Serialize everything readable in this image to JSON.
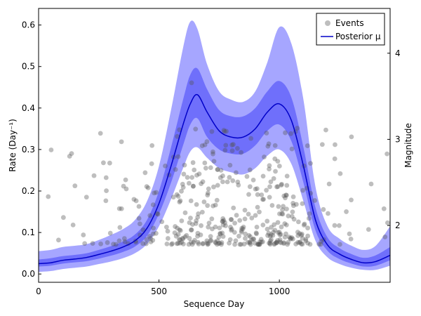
{
  "chart_data": {
    "type": "line",
    "xlabel": "Sequence Day",
    "ylabel": "Rate (Day⁻¹)",
    "y2label": "Magnitude",
    "xlim": [
      0,
      1460
    ],
    "ylim": [
      -0.02,
      0.64
    ],
    "y2lim": [
      1.34,
      4.52
    ],
    "x_ticks": [
      0,
      500,
      1000
    ],
    "y_ticks": [
      0.0,
      0.1,
      0.2,
      0.3,
      0.4,
      0.5,
      0.6
    ],
    "y2_ticks": [
      2,
      3,
      4
    ],
    "legend": {
      "placement": "top-right",
      "entries": [
        "Events",
        "Posterior μ"
      ]
    },
    "colors": {
      "band_outer": "#a6a6ff",
      "band_inner": "#6f6ffb",
      "mean_line": "#0000c8",
      "events": "#555555"
    },
    "posterior": {
      "x": [
        0,
        50,
        100,
        150,
        200,
        250,
        300,
        350,
        400,
        450,
        500,
        550,
        600,
        630,
        660,
        700,
        750,
        800,
        850,
        900,
        950,
        1000,
        1050,
        1100,
        1150,
        1200,
        1250,
        1300,
        1350,
        1400,
        1460
      ],
      "mean": [
        0.025,
        0.027,
        0.033,
        0.036,
        0.04,
        0.047,
        0.055,
        0.065,
        0.08,
        0.11,
        0.17,
        0.26,
        0.36,
        0.41,
        0.432,
        0.39,
        0.345,
        0.33,
        0.33,
        0.35,
        0.39,
        0.41,
        0.37,
        0.26,
        0.13,
        0.07,
        0.048,
        0.035,
        0.027,
        0.03,
        0.045
      ],
      "inner_low": [
        0.018,
        0.02,
        0.025,
        0.028,
        0.031,
        0.037,
        0.044,
        0.053,
        0.066,
        0.092,
        0.145,
        0.22,
        0.31,
        0.36,
        0.375,
        0.33,
        0.3,
        0.29,
        0.29,
        0.31,
        0.345,
        0.36,
        0.32,
        0.22,
        0.105,
        0.056,
        0.036,
        0.025,
        0.018,
        0.02,
        0.033
      ],
      "inner_high": [
        0.035,
        0.038,
        0.043,
        0.046,
        0.05,
        0.058,
        0.067,
        0.078,
        0.095,
        0.13,
        0.2,
        0.305,
        0.42,
        0.48,
        0.495,
        0.445,
        0.395,
        0.38,
        0.38,
        0.4,
        0.44,
        0.465,
        0.425,
        0.305,
        0.16,
        0.088,
        0.062,
        0.048,
        0.039,
        0.045,
        0.065
      ],
      "outer_low": [
        0.005,
        0.007,
        0.012,
        0.015,
        0.018,
        0.024,
        0.03,
        0.038,
        0.05,
        0.072,
        0.115,
        0.18,
        0.255,
        0.295,
        0.305,
        0.28,
        0.255,
        0.245,
        0.24,
        0.255,
        0.285,
        0.3,
        0.265,
        0.175,
        0.08,
        0.04,
        0.024,
        0.015,
        0.01,
        0.01,
        0.02
      ],
      "outer_high": [
        0.055,
        0.058,
        0.065,
        0.068,
        0.072,
        0.082,
        0.094,
        0.108,
        0.13,
        0.175,
        0.26,
        0.395,
        0.545,
        0.608,
        0.59,
        0.505,
        0.44,
        0.42,
        0.415,
        0.44,
        0.51,
        0.595,
        0.555,
        0.42,
        0.21,
        0.115,
        0.085,
        0.068,
        0.058,
        0.068,
        0.115
      ]
    },
    "events": {
      "seed": 7,
      "count": 440,
      "note_y2": "events plotted against the Magnitude axis"
    }
  }
}
